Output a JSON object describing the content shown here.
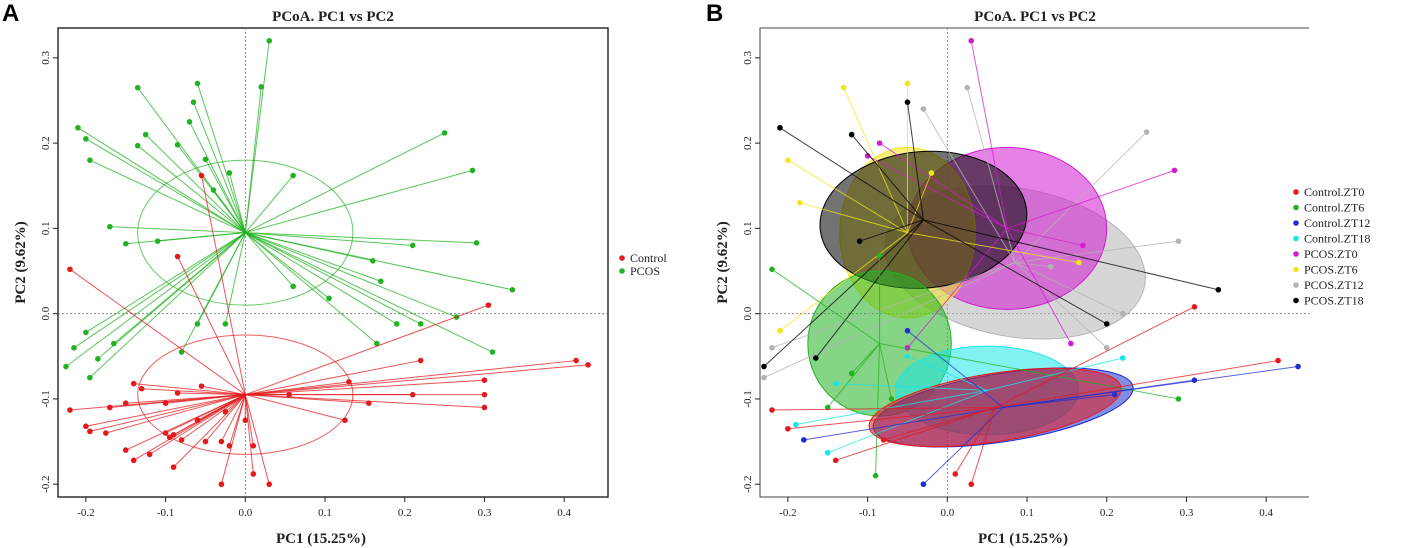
{
  "panels": {
    "a": "A",
    "b": "B"
  },
  "colors": {
    "Control": "#e31a1c",
    "PCOS": "#22b322",
    "Control.ZT0": "#e31a1c",
    "Control.ZT6": "#22b322",
    "Control.ZT12": "#1f2fd0",
    "Control.ZT18": "#19e6e6",
    "PCOS.ZT0": "#d21bd2",
    "PCOS.ZT6": "#f2e61a",
    "PCOS.ZT12": "#b4b4b4",
    "PCOS.ZT18": "#000000"
  },
  "chart_data": [
    {
      "type": "scatter",
      "title": "PCoA. PC1 vs PC2",
      "xlabel": "PC1 (15.25%)",
      "ylabel": "PC2 (9.62%)",
      "xlim": [
        -0.235,
        0.455
      ],
      "ylim": [
        -0.215,
        0.335
      ],
      "xticks": [
        -0.2,
        -0.1,
        0.0,
        0.1,
        0.2,
        0.3,
        0.4
      ],
      "yticks": [
        -0.2,
        -0.1,
        0.0,
        0.1,
        0.2,
        0.3
      ],
      "legend": [
        "Control",
        "PCOS"
      ],
      "legend_position": "right",
      "series": [
        {
          "name": "PCOS",
          "centroid": [
            0.0,
            0.095
          ],
          "ellipse": {
            "rx": 0.135,
            "ry": 0.085,
            "angle": 0
          },
          "points": [
            [
              0.03,
              0.32
            ],
            [
              0.02,
              0.266
            ],
            [
              -0.06,
              0.27
            ],
            [
              -0.065,
              0.248
            ],
            [
              -0.07,
              0.225
            ],
            [
              -0.135,
              0.265
            ],
            [
              -0.21,
              0.218
            ],
            [
              -0.2,
              0.205
            ],
            [
              -0.125,
              0.21
            ],
            [
              -0.135,
              0.197
            ],
            [
              -0.085,
              0.198
            ],
            [
              -0.195,
              0.18
            ],
            [
              -0.05,
              0.181
            ],
            [
              -0.02,
              0.165
            ],
            [
              0.06,
              0.162
            ],
            [
              -0.04,
              0.145
            ],
            [
              0.25,
              0.212
            ],
            [
              0.285,
              0.168
            ],
            [
              -0.17,
              0.102
            ],
            [
              -0.11,
              0.085
            ],
            [
              -0.15,
              0.082
            ],
            [
              0.21,
              0.08
            ],
            [
              0.29,
              0.083
            ],
            [
              0.16,
              0.062
            ],
            [
              0.17,
              0.038
            ],
            [
              0.335,
              0.028
            ],
            [
              0.06,
              0.032
            ],
            [
              0.105,
              0.018
            ],
            [
              0.265,
              -0.004
            ],
            [
              0.19,
              -0.012
            ],
            [
              0.22,
              -0.012
            ],
            [
              -0.06,
              -0.012
            ],
            [
              -0.025,
              -0.012
            ],
            [
              -0.2,
              -0.022
            ],
            [
              -0.215,
              -0.04
            ],
            [
              -0.165,
              -0.035
            ],
            [
              -0.185,
              -0.053
            ],
            [
              -0.08,
              -0.045
            ],
            [
              0.165,
              -0.035
            ],
            [
              0.31,
              -0.045
            ],
            [
              -0.225,
              -0.062
            ],
            [
              -0.195,
              -0.075
            ]
          ]
        },
        {
          "name": "Control",
          "centroid": [
            0.0,
            -0.095
          ],
          "ellipse": {
            "rx": 0.135,
            "ry": 0.07,
            "angle": 0
          },
          "points": [
            [
              -0.22,
              0.052
            ],
            [
              -0.055,
              0.162
            ],
            [
              -0.085,
              0.067
            ],
            [
              0.305,
              0.01
            ],
            [
              0.415,
              -0.055
            ],
            [
              0.43,
              -0.06
            ],
            [
              0.3,
              -0.078
            ],
            [
              0.22,
              -0.055
            ],
            [
              0.13,
              -0.08
            ],
            [
              0.3,
              -0.095
            ],
            [
              0.21,
              -0.095
            ],
            [
              0.155,
              -0.105
            ],
            [
              0.125,
              -0.125
            ],
            [
              0.3,
              -0.11
            ],
            [
              0.055,
              -0.095
            ],
            [
              -0.14,
              -0.082
            ],
            [
              -0.13,
              -0.088
            ],
            [
              -0.055,
              -0.085
            ],
            [
              -0.085,
              -0.093
            ],
            [
              -0.1,
              -0.105
            ],
            [
              -0.15,
              -0.105
            ],
            [
              -0.17,
              -0.11
            ],
            [
              -0.22,
              -0.113
            ],
            [
              -0.025,
              -0.115
            ],
            [
              0.0,
              -0.125
            ],
            [
              -0.06,
              -0.125
            ],
            [
              -0.2,
              -0.132
            ],
            [
              -0.195,
              -0.138
            ],
            [
              -0.175,
              -0.14
            ],
            [
              -0.1,
              -0.14
            ],
            [
              -0.095,
              -0.145
            ],
            [
              -0.09,
              -0.142
            ],
            [
              -0.08,
              -0.148
            ],
            [
              -0.05,
              -0.15
            ],
            [
              -0.03,
              -0.15
            ],
            [
              -0.15,
              -0.16
            ],
            [
              -0.12,
              -0.165
            ],
            [
              -0.14,
              -0.172
            ],
            [
              -0.02,
              -0.155
            ],
            [
              0.01,
              -0.155
            ],
            [
              -0.09,
              -0.18
            ],
            [
              0.01,
              -0.188
            ],
            [
              0.03,
              -0.2
            ],
            [
              -0.03,
              -0.2
            ]
          ]
        }
      ]
    },
    {
      "type": "scatter",
      "title": "PCoA. PC1 vs PC2",
      "xlabel": "PC1 (15.25%)",
      "ylabel": "PC2 (9.62%)",
      "xlim": [
        -0.235,
        0.455
      ],
      "ylim": [
        -0.215,
        0.335
      ],
      "xticks": [
        -0.2,
        -0.1,
        0.0,
        0.1,
        0.2,
        0.3,
        0.4
      ],
      "yticks": [
        -0.2,
        -0.1,
        0.0,
        0.1,
        0.2,
        0.3
      ],
      "legend": [
        "Control.ZT0",
        "Control.ZT6",
        "Control.ZT12",
        "Control.ZT18",
        "PCOS.ZT0",
        "PCOS.ZT6",
        "PCOS.ZT12",
        "PCOS.ZT18"
      ],
      "legend_position": "right",
      "series": [
        {
          "name": "PCOS.ZT12",
          "centroid": [
            0.085,
            0.06
          ],
          "ellipse": {
            "rx": 0.165,
            "ry": 0.087,
            "angle": 10
          },
          "points": [
            [
              0.025,
              0.265
            ],
            [
              0.25,
              0.213
            ],
            [
              0.29,
              0.085
            ],
            [
              0.2,
              -0.04
            ],
            [
              -0.03,
              0.24
            ],
            [
              -0.22,
              -0.04
            ],
            [
              -0.23,
              -0.075
            ],
            [
              0.22,
              0.0
            ],
            [
              0.13,
              0.055
            ]
          ]
        },
        {
          "name": "PCOS.ZT0",
          "centroid": [
            0.075,
            0.1
          ],
          "ellipse": {
            "rx": 0.125,
            "ry": 0.095,
            "angle": 0
          },
          "points": [
            [
              0.03,
              0.32
            ],
            [
              -0.085,
              0.2
            ],
            [
              -0.1,
              0.185
            ],
            [
              0.285,
              0.168
            ],
            [
              0.155,
              -0.035
            ],
            [
              0.17,
              0.08
            ],
            [
              -0.05,
              -0.04
            ]
          ]
        },
        {
          "name": "PCOS.ZT6",
          "centroid": [
            -0.05,
            0.095
          ],
          "ellipse": {
            "rx": 0.085,
            "ry": 0.1,
            "angle": 0
          },
          "points": [
            [
              -0.13,
              0.265
            ],
            [
              -0.05,
              0.27
            ],
            [
              -0.2,
              0.18
            ],
            [
              -0.185,
              0.13
            ],
            [
              -0.21,
              -0.02
            ],
            [
              0.165,
              0.06
            ],
            [
              -0.02,
              0.165
            ]
          ]
        },
        {
          "name": "PCOS.ZT18",
          "centroid": [
            -0.03,
            0.11
          ],
          "ellipse": {
            "rx": 0.13,
            "ry": 0.08,
            "angle": -5
          },
          "points": [
            [
              -0.05,
              0.248
            ],
            [
              -0.21,
              0.218
            ],
            [
              -0.12,
              0.21
            ],
            [
              0.34,
              0.028
            ],
            [
              0.2,
              -0.012
            ],
            [
              -0.165,
              -0.052
            ],
            [
              -0.23,
              -0.062
            ],
            [
              -0.11,
              0.085
            ]
          ]
        },
        {
          "name": "Control.ZT6",
          "centroid": [
            -0.085,
            -0.035
          ],
          "ellipse": {
            "rx": 0.09,
            "ry": 0.085,
            "angle": 0
          },
          "points": [
            [
              -0.22,
              0.052
            ],
            [
              -0.085,
              0.068
            ],
            [
              0.29,
              -0.1
            ],
            [
              -0.07,
              -0.1
            ],
            [
              -0.09,
              -0.19
            ],
            [
              -0.12,
              -0.07
            ],
            [
              -0.15,
              -0.11
            ]
          ]
        },
        {
          "name": "Control.ZT18",
          "centroid": [
            0.05,
            -0.09
          ],
          "ellipse": {
            "rx": 0.115,
            "ry": 0.052,
            "angle": 0
          },
          "points": [
            [
              0.22,
              -0.052
            ],
            [
              -0.19,
              -0.13
            ],
            [
              -0.15,
              -0.163
            ],
            [
              -0.14,
              -0.082
            ],
            [
              -0.05,
              -0.05
            ]
          ]
        },
        {
          "name": "Control.ZT12",
          "centroid": [
            0.07,
            -0.11
          ],
          "ellipse": {
            "rx": 0.165,
            "ry": 0.04,
            "angle": -9
          },
          "points": [
            [
              0.44,
              -0.062
            ],
            [
              0.31,
              -0.078
            ],
            [
              0.21,
              -0.095
            ],
            [
              -0.18,
              -0.148
            ],
            [
              -0.03,
              -0.2
            ],
            [
              -0.05,
              -0.02
            ]
          ]
        },
        {
          "name": "Control.ZT0",
          "centroid": [
            0.06,
            -0.11
          ],
          "ellipse": {
            "rx": 0.16,
            "ry": 0.04,
            "angle": -9
          },
          "points": [
            [
              0.415,
              -0.055
            ],
            [
              0.31,
              0.008
            ],
            [
              -0.22,
              -0.113
            ],
            [
              -0.2,
              -0.135
            ],
            [
              -0.14,
              -0.172
            ],
            [
              0.01,
              -0.188
            ],
            [
              0.03,
              -0.2
            ],
            [
              -0.08,
              -0.148
            ]
          ]
        }
      ]
    }
  ]
}
